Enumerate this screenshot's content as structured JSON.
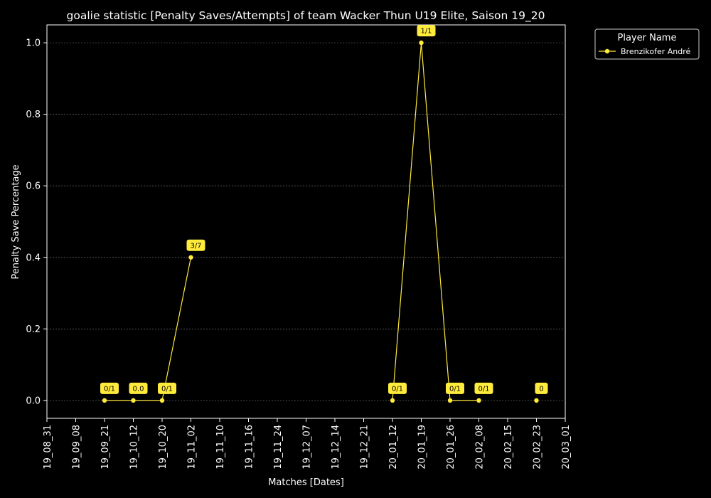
{
  "chart_data": {
    "type": "line",
    "title": "goalie statistic [Penalty Saves/Attempts] of team Wacker Thun U19 Elite, Saison 19_20",
    "xlabel": "Matches [Dates]",
    "ylabel": "Penalty Save Percentage",
    "x_ticks": [
      "19_08_31",
      "19_09_08",
      "19_09_21",
      "19_10_12",
      "19_10_20",
      "19_11_02",
      "19_11_10",
      "19_11_16",
      "19_11_24",
      "19_12_07",
      "19_12_14",
      "19_12_21",
      "20_01_12",
      "20_01_19",
      "20_01_26",
      "20_02_08",
      "20_02_15",
      "20_02_23",
      "20_03_01"
    ],
    "y_ticks": [
      "0.0",
      "0.2",
      "0.4",
      "0.6",
      "0.8",
      "1.0"
    ],
    "ylim": [
      -0.05,
      1.05
    ],
    "grid": true,
    "legend": {
      "title": "Player Name",
      "placement": "outside-top-right"
    },
    "series": [
      {
        "name": "Brenzikofer André",
        "color": "#ffeb3b",
        "points": [
          {
            "x": "19_09_21",
            "y": 0.0,
            "label": "0/1",
            "segment": 0
          },
          {
            "x": "19_10_12",
            "y": 0.0,
            "label": "0.0",
            "segment": 0
          },
          {
            "x": "19_10_20",
            "y": 0.0,
            "label": "0/1",
            "segment": 0
          },
          {
            "x": "19_11_02",
            "y": 0.4,
            "label": "3/7",
            "segment": 0
          },
          {
            "x": "20_01_12",
            "y": 0.0,
            "label": "0/1",
            "segment": 1
          },
          {
            "x": "20_01_19",
            "y": 1.0,
            "label": "1/1",
            "segment": 1
          },
          {
            "x": "20_01_26",
            "y": 0.0,
            "label": "0/1",
            "segment": 1
          },
          {
            "x": "20_02_08",
            "y": 0.0,
            "label": "0/1",
            "segment": 1
          },
          {
            "x": "20_02_23",
            "y": 0.0,
            "label": "0",
            "segment": 2
          }
        ]
      }
    ],
    "colors": {
      "background": "#000000",
      "axis": "#ffffff",
      "grid": "#888888",
      "series": "#ffeb3b"
    }
  }
}
